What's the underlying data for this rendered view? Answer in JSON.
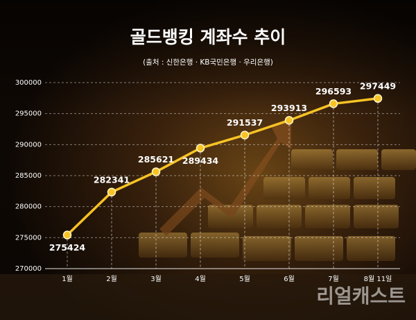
{
  "chart_data": {
    "type": "line",
    "title": "골드뱅킹 계좌수 추이",
    "subtitle": "(출처 : 신한은행 · KB국민은행 · 우리은행)",
    "categories": [
      "1월",
      "2월",
      "3월",
      "4월",
      "5월",
      "6월",
      "7월",
      "8월 11일"
    ],
    "values": [
      275424,
      282341,
      285621,
      289434,
      291537,
      293913,
      296593,
      297449
    ],
    "color": "#f7c325",
    "ylim": [
      270000,
      300000
    ],
    "yticks": [
      270000,
      275000,
      280000,
      285000,
      290000,
      295000,
      300000
    ],
    "grid": true,
    "watermark": "리얼캐스트"
  }
}
